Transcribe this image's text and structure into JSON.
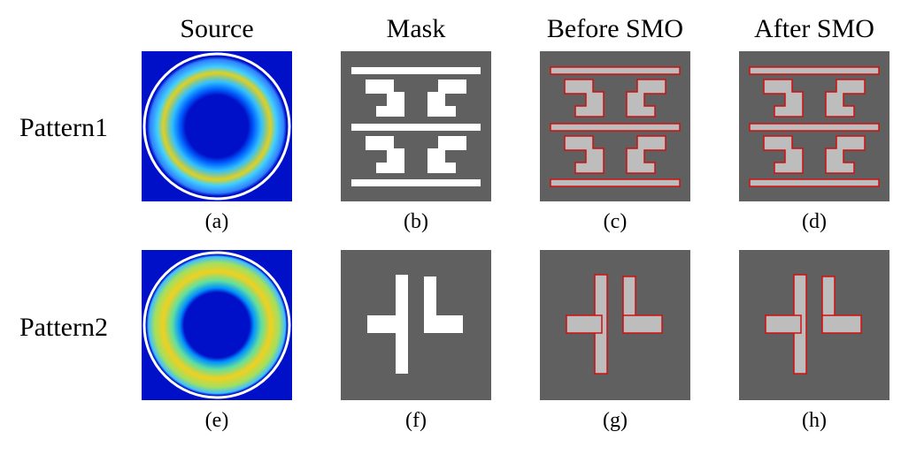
{
  "columns": [
    "Source",
    "Mask",
    "Before SMO",
    "After SMO"
  ],
  "rows": [
    {
      "label": "Pattern1",
      "captions": [
        "(a)",
        "(b)",
        "(c)",
        "(d)"
      ]
    },
    {
      "label": "Pattern2",
      "captions": [
        "(e)",
        "(f)",
        "(g)",
        "(h)"
      ]
    }
  ]
}
